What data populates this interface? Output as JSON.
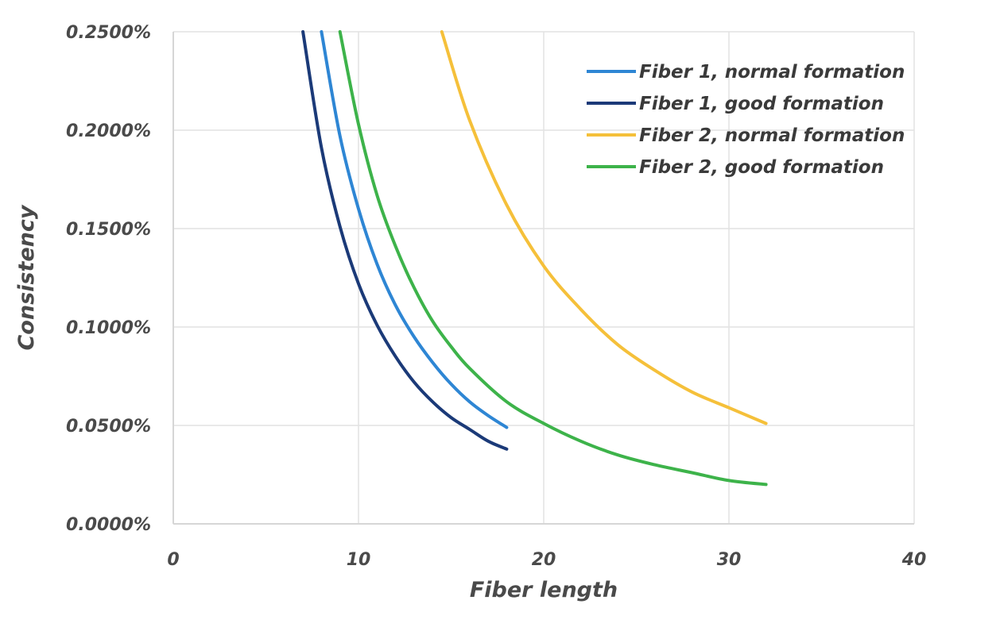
{
  "chart_data": {
    "type": "line",
    "title": "",
    "xlabel": "Fiber length",
    "ylabel": "Consistency",
    "xlim": [
      0,
      40
    ],
    "ylim": [
      0,
      0.25
    ],
    "x_ticks": [
      0,
      10,
      20,
      30,
      40
    ],
    "x_tick_labels": [
      "0",
      "10",
      "20",
      "30",
      "40"
    ],
    "y_ticks": [
      0,
      0.05,
      0.1,
      0.15,
      0.2,
      0.25
    ],
    "y_tick_labels": [
      "0.0000%",
      "0.0500%",
      "0.1000%",
      "0.1500%",
      "0.2000%",
      "0.2500%"
    ],
    "grid": true,
    "legend_position": "top-right",
    "series": [
      {
        "name": "Fiber 1, normal formation",
        "color": "#2e86d4",
        "x": [
          8,
          9,
          10,
          11,
          12,
          13,
          14,
          15,
          16,
          17,
          18
        ],
        "y": [
          0.25,
          0.197,
          0.16,
          0.132,
          0.111,
          0.095,
          0.082,
          0.071,
          0.062,
          0.055,
          0.049
        ]
      },
      {
        "name": "Fiber 1, good formation",
        "color": "#1b3a78",
        "x": [
          7,
          8,
          9,
          10,
          11,
          12,
          13,
          14,
          15,
          16,
          17,
          18
        ],
        "y": [
          0.25,
          0.191,
          0.151,
          0.122,
          0.101,
          0.085,
          0.072,
          0.062,
          0.054,
          0.048,
          0.042,
          0.038
        ]
      },
      {
        "name": "Fiber 2, normal formation",
        "color": "#f5c03a",
        "x": [
          14.5,
          16,
          18,
          20,
          22,
          24,
          26,
          28,
          30,
          32
        ],
        "y": [
          0.25,
          0.205,
          0.162,
          0.131,
          0.109,
          0.091,
          0.078,
          0.067,
          0.059,
          0.051
        ]
      },
      {
        "name": "Fiber 2, good formation",
        "color": "#3db34a",
        "x": [
          9,
          10,
          11,
          12,
          13,
          14,
          15,
          16,
          18,
          20,
          22,
          24,
          26,
          28,
          30,
          32
        ],
        "y": [
          0.25,
          0.203,
          0.167,
          0.141,
          0.12,
          0.103,
          0.09,
          0.079,
          0.062,
          0.051,
          0.042,
          0.035,
          0.03,
          0.026,
          0.022,
          0.02
        ]
      }
    ]
  }
}
